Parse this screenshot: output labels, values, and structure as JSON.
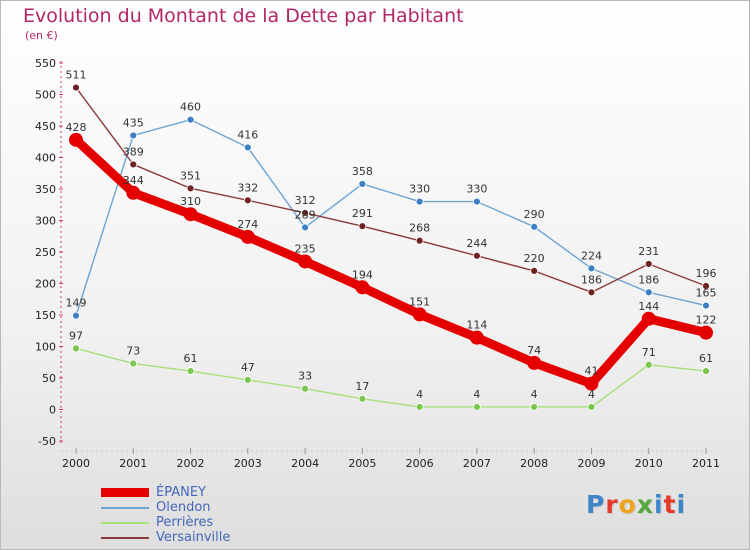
{
  "title": "Evolution du Montant de la Dette par Habitant",
  "subtitle": "(en €)",
  "brand": {
    "text": "Proxiti",
    "letter_colors": [
      "#3f86c8",
      "#e5392a",
      "#f0a21a",
      "#54a83b",
      "#3f86c8",
      "#e5392a",
      "#3f86c8"
    ]
  },
  "chart_data": {
    "type": "line",
    "title": "Evolution du Montant de la Dette par Habitant",
    "subtitle": "(en €)",
    "x": [
      "2000",
      "2001",
      "2002",
      "2003",
      "2004",
      "2005",
      "2006",
      "2007",
      "2008",
      "2009",
      "2010",
      "2011"
    ],
    "ylim": [
      -50,
      550
    ],
    "yticks": [
      -50,
      0,
      50,
      100,
      150,
      200,
      250,
      300,
      350,
      400,
      450,
      500,
      550
    ],
    "grid": false,
    "legend_position": "bottom-left",
    "series": [
      {
        "name": "ÉPANEY",
        "color": "#e50000",
        "bold": true,
        "values": [
          428,
          344,
          310,
          274,
          235,
          194,
          151,
          114,
          74,
          41,
          144,
          122
        ]
      },
      {
        "name": "Olendon",
        "color": "#6ea4d3",
        "point_color": "#3b7fc4",
        "values": [
          149,
          435,
          460,
          416,
          289,
          358,
          330,
          330,
          290,
          224,
          186,
          165
        ]
      },
      {
        "name": "Perrières",
        "color": "#a6e07a",
        "point_color": "#7bc64d",
        "values": [
          97,
          73,
          61,
          47,
          33,
          17,
          4,
          4,
          4,
          4,
          71,
          61
        ]
      },
      {
        "name": "Versainville",
        "color": "#8b3a3a",
        "point_color": "#6e2222",
        "values": [
          511,
          389,
          351,
          332,
          312,
          291,
          268,
          244,
          220,
          186,
          231,
          196
        ]
      }
    ]
  }
}
